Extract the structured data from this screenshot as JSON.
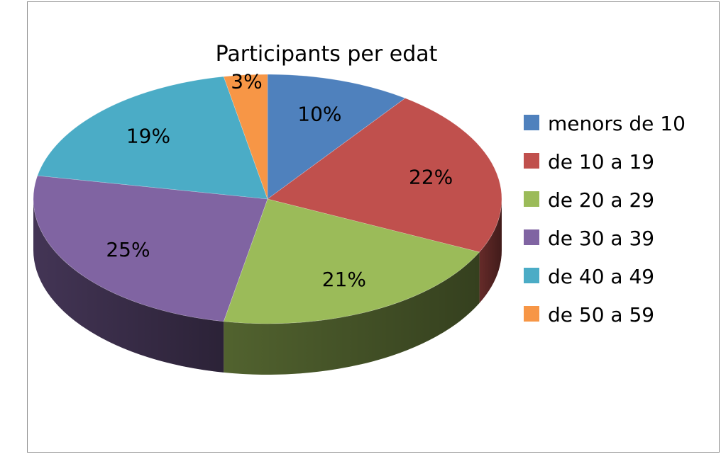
{
  "chart_data": {
    "type": "pie",
    "title": "Participants per edat",
    "categories": [
      "menors de 10",
      "de 10 a 19",
      "de 20 a 29",
      "de 30 a 39",
      "de 40 a 49",
      "de 50 a 59"
    ],
    "values": [
      10,
      22,
      21,
      25,
      19,
      3
    ],
    "data_labels": [
      "10%",
      "22%",
      "21%",
      "25%",
      "19%",
      "3%"
    ],
    "colors": [
      "#4F81BD",
      "#C0504D",
      "#9BBB59",
      "#8064A2",
      "#4BACC6",
      "#F79646"
    ],
    "legend_position": "right",
    "style": "3d"
  }
}
